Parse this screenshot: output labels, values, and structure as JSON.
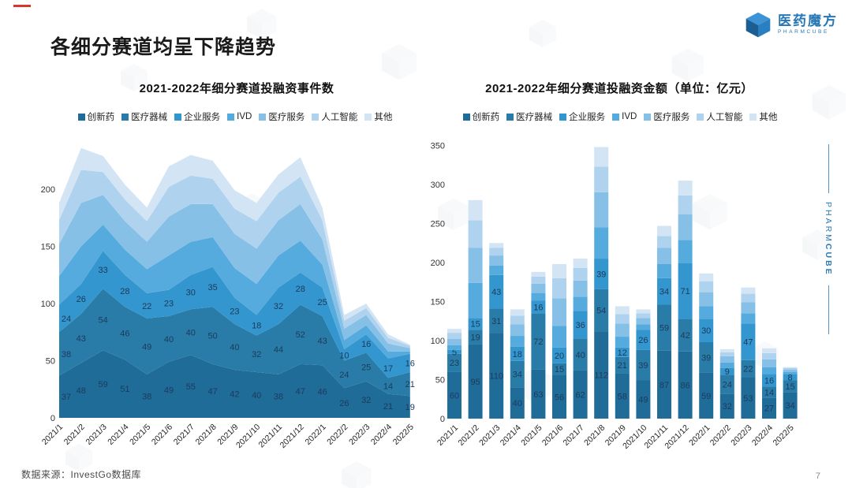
{
  "page": {
    "title": "各细分赛道均呈下降趋势",
    "footer_source": "数据来源：InvestGo数据库",
    "page_number": "7",
    "accent_red": "#d6372c",
    "brand_blue": "#2B7BB9"
  },
  "brand": {
    "logo_cn": "医药魔方",
    "logo_en": "PHARMCUBE",
    "side_text_light": "PHARM",
    "side_text_bold": "CUBE"
  },
  "chart_data": [
    {
      "type": "area",
      "stacked": true,
      "title": "2021-2022年细分赛道投融资事件数",
      "legend_position": "top",
      "grid": false,
      "ylim": [
        0,
        250
      ],
      "yticks": [
        0,
        50,
        100,
        150,
        200
      ],
      "categories": [
        "2021/1",
        "2021/2",
        "2021/3",
        "2021/4",
        "2021/5",
        "2021/6",
        "2021/7",
        "2021/8",
        "2021/9",
        "2021/10",
        "2021/11",
        "2021/12",
        "2022/1",
        "2022/2",
        "2022/3",
        "2022/4",
        "2022/5"
      ],
      "series": [
        {
          "name": "创新药",
          "color": "#206C99",
          "labels_shown": true,
          "values": [
            37,
            48,
            59,
            51,
            38,
            49,
            55,
            47,
            42,
            40,
            38,
            47,
            46,
            26,
            32,
            21,
            19
          ]
        },
        {
          "name": "医疗器械",
          "color": "#2A7CA8",
          "labels_shown": true,
          "values": [
            38,
            43,
            54,
            46,
            49,
            40,
            40,
            50,
            40,
            32,
            44,
            52,
            43,
            24,
            25,
            14,
            21
          ]
        },
        {
          "name": "企业服务",
          "color": "#3496CE",
          "labels_shown": true,
          "values": [
            24,
            26,
            33,
            28,
            22,
            23,
            30,
            35,
            23,
            18,
            32,
            28,
            25,
            10,
            16,
            17,
            16
          ]
        },
        {
          "name": "IVD",
          "color": "#55ABDD",
          "labels_shown": false,
          "estimated": true,
          "values": [
            25,
            33,
            23,
            22,
            21,
            30,
            29,
            26,
            26,
            27,
            28,
            28,
            20,
            8,
            8,
            6,
            2
          ]
        },
        {
          "name": "医疗服务",
          "color": "#86C0E6",
          "labels_shown": false,
          "estimated": true,
          "values": [
            28,
            38,
            26,
            25,
            24,
            34,
            33,
            29,
            30,
            31,
            31,
            32,
            22,
            10,
            9,
            7,
            3
          ]
        },
        {
          "name": "人工智能",
          "color": "#AFD3EE",
          "labels_shown": false,
          "estimated": true,
          "values": [
            21,
            29,
            20,
            19,
            18,
            26,
            25,
            22,
            22,
            24,
            24,
            24,
            17,
            7,
            6,
            5,
            2
          ]
        },
        {
          "name": "其他",
          "color": "#D3E5F4",
          "labels_shown": false,
          "estimated": true,
          "values": [
            15,
            19,
            14,
            13,
            12,
            18,
            18,
            16,
            16,
            16,
            16,
            17,
            11,
            5,
            4,
            3,
            1
          ]
        }
      ]
    },
    {
      "type": "bar",
      "stacked": true,
      "title": "2021-2022年细分赛道投融资金额（单位：亿元）",
      "legend_position": "top",
      "grid": false,
      "ylim": [
        0,
        350
      ],
      "yticks": [
        0,
        50,
        100,
        150,
        200,
        250,
        300,
        350
      ],
      "categories": [
        "2021/1",
        "2021/2",
        "2021/3",
        "2021/4",
        "2021/5",
        "2021/6",
        "2021/7",
        "2021/8",
        "2021/9",
        "2021/10",
        "2021/11",
        "2021/12",
        "2022/1",
        "2022/2",
        "2022/3",
        "2022/4",
        "2022/5"
      ],
      "series": [
        {
          "name": "创新药",
          "color": "#206C99",
          "labels_shown": true,
          "values": [
            60,
            95,
            110,
            40,
            63,
            56,
            62,
            112,
            58,
            49,
            87,
            86,
            59,
            32,
            53,
            27,
            34
          ]
        },
        {
          "name": "医疗器械",
          "color": "#2A7CA8",
          "labels_shown": true,
          "values": [
            23,
            19,
            31,
            34,
            72,
            15,
            40,
            54,
            21,
            39,
            59,
            42,
            39,
            24,
            22,
            14,
            15
          ]
        },
        {
          "name": "企业服务",
          "color": "#3496CE",
          "labels_shown": true,
          "values": [
            5,
            15,
            43,
            18,
            16,
            20,
            36,
            39,
            12,
            26,
            34,
            71,
            30,
            9,
            47,
            16,
            8
          ]
        },
        {
          "name": "IVD",
          "color": "#55ABDD",
          "labels_shown": false,
          "estimated": true,
          "values": [
            6,
            45,
            12,
            14,
            10,
            28,
            18,
            40,
            14,
            7,
            18,
            30,
            16,
            7,
            13,
            9,
            3
          ]
        },
        {
          "name": "医疗服务",
          "color": "#86C0E6",
          "labels_shown": false,
          "estimated": true,
          "values": [
            8,
            45,
            13,
            15,
            12,
            35,
            21,
            45,
            17,
            8,
            21,
            33,
            18,
            8,
            14,
            10,
            3
          ]
        },
        {
          "name": "人工智能",
          "color": "#AFD3EE",
          "labels_shown": false,
          "estimated": true,
          "values": [
            8,
            35,
            10,
            11,
            9,
            26,
            16,
            33,
            12,
            6,
            15,
            24,
            14,
            5,
            11,
            8,
            2
          ]
        },
        {
          "name": "其他",
          "color": "#D3E5F4",
          "labels_shown": false,
          "estimated": true,
          "values": [
            5,
            26,
            6,
            8,
            6,
            18,
            12,
            25,
            10,
            5,
            13,
            19,
            10,
            4,
            8,
            6,
            1
          ]
        }
      ]
    }
  ]
}
